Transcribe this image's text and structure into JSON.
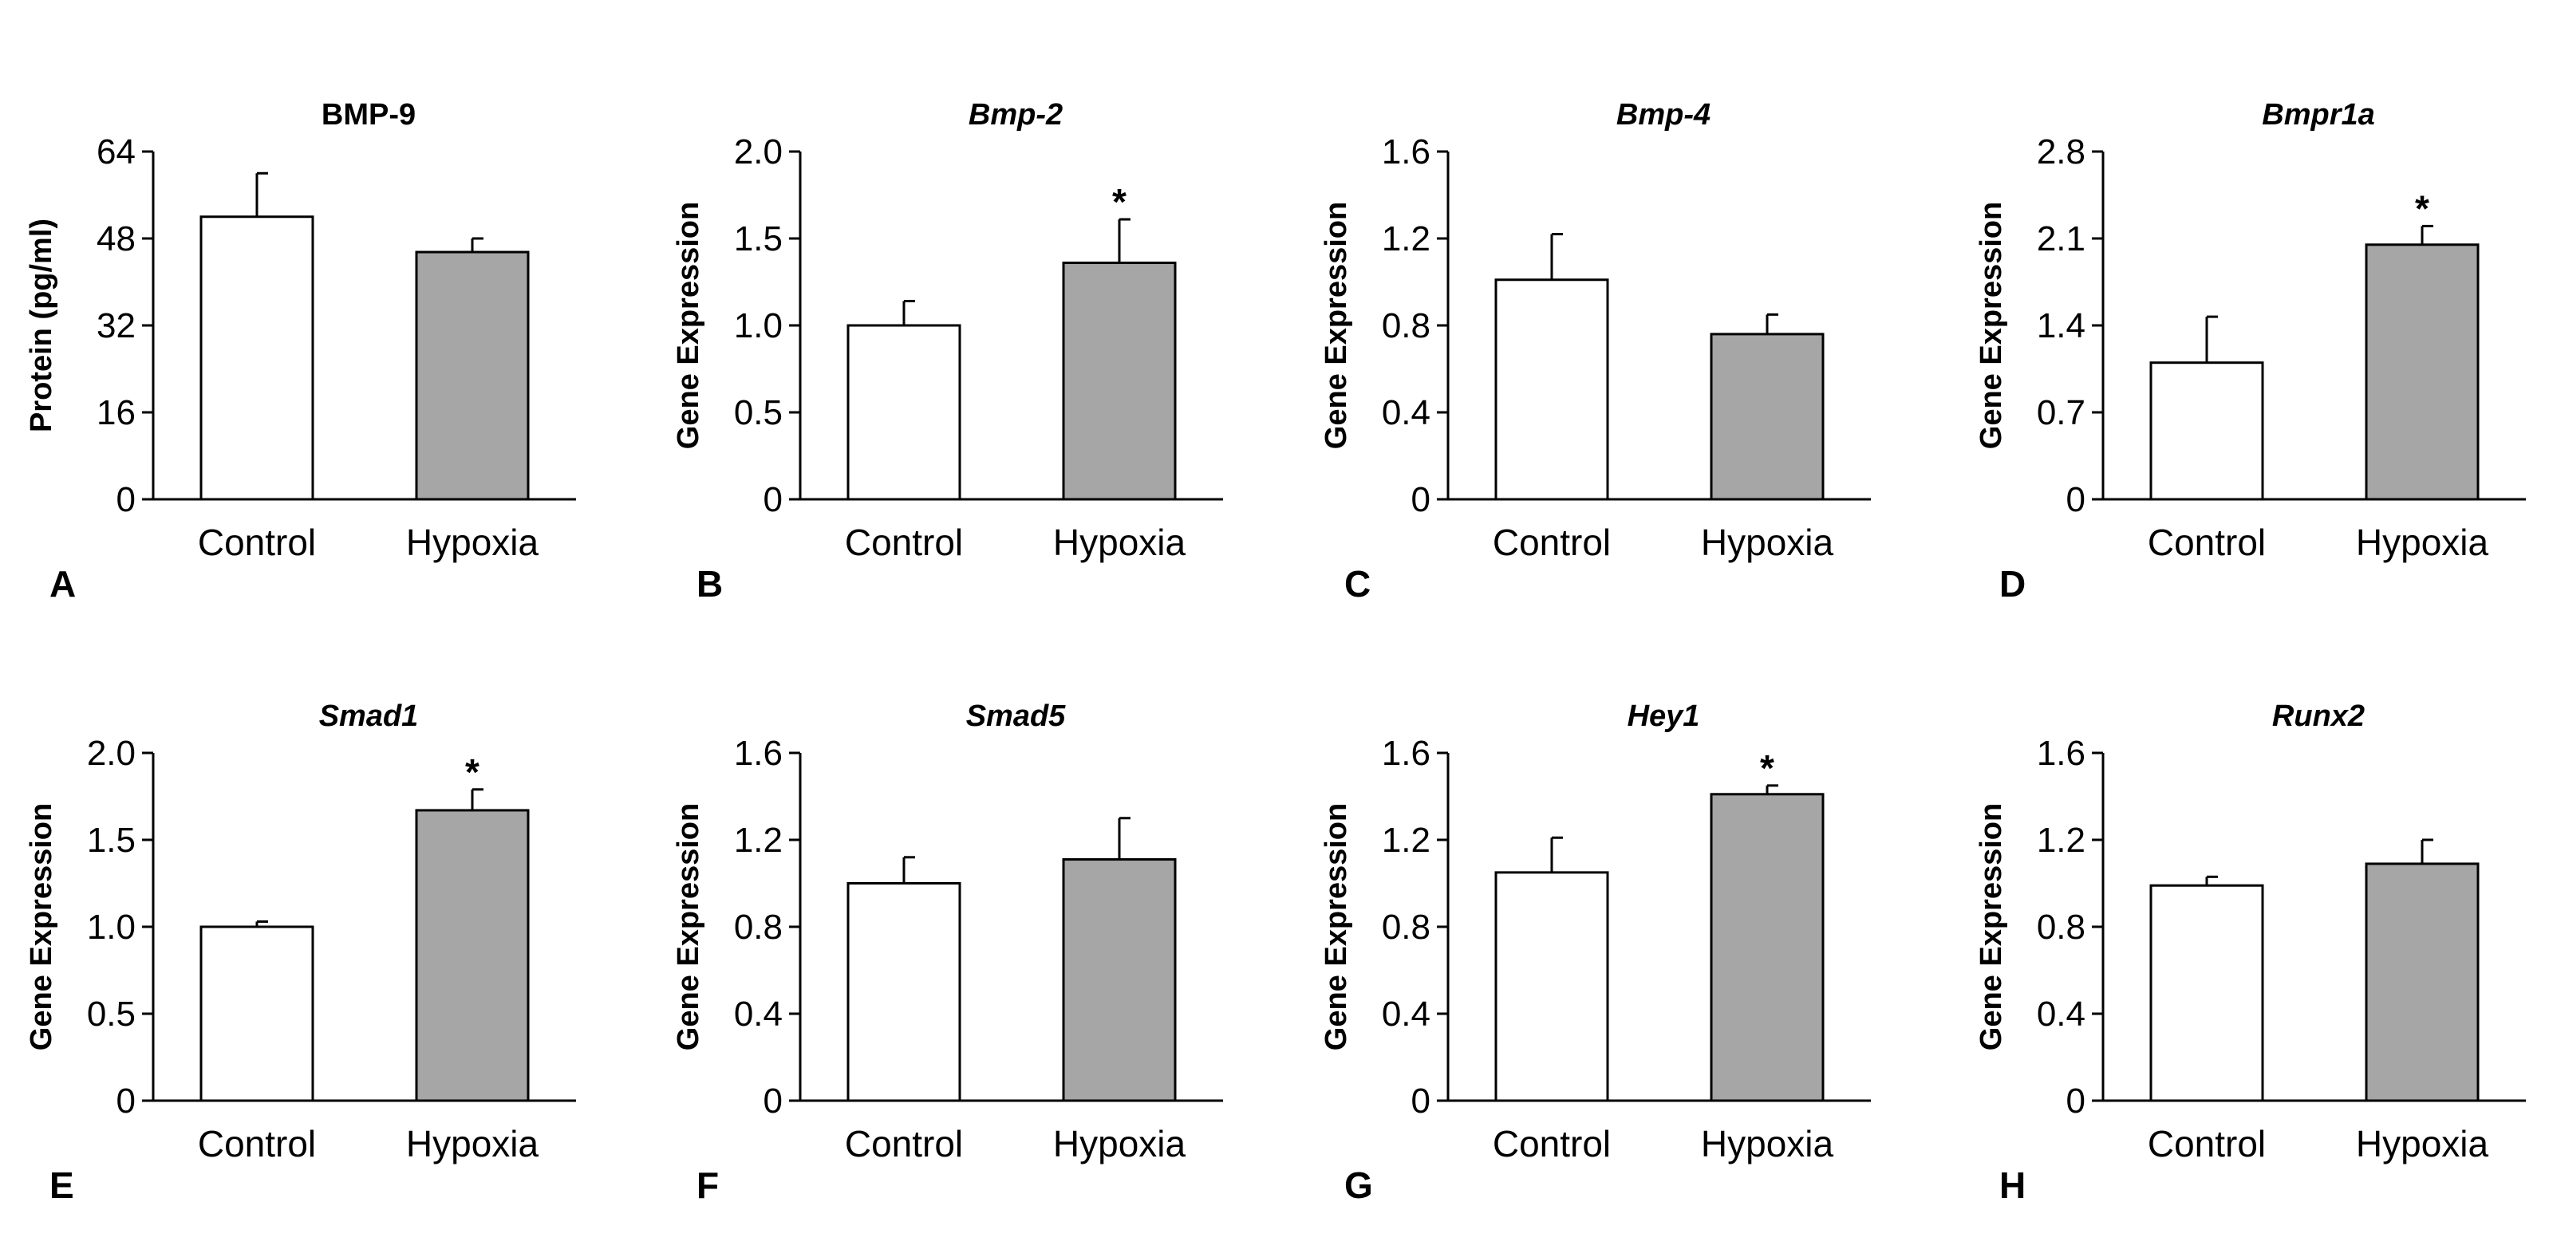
{
  "figure": {
    "background": "#ffffff"
  },
  "chart_data": [
    {
      "panel": "A",
      "type": "bar",
      "title": "BMP-9",
      "title_italic": false,
      "ylabel": "Protein (pg/ml)",
      "xlabel": "",
      "categories": [
        "Control",
        "Hypoxia"
      ],
      "values": [
        52,
        45.5
      ],
      "errors": [
        8,
        2.5
      ],
      "significance": [
        "",
        ""
      ],
      "ylim": [
        0,
        64
      ],
      "yticks": [
        0,
        16,
        32,
        48,
        64
      ],
      "ytick_labels": [
        "0",
        "16",
        "32",
        "48",
        "64"
      ],
      "bar_colors": [
        "#ffffff",
        "#a6a6a6"
      ]
    },
    {
      "panel": "B",
      "type": "bar",
      "title": "Bmp-2",
      "title_italic": true,
      "ylabel": "Gene Expression",
      "xlabel": "",
      "categories": [
        "Control",
        "Hypoxia"
      ],
      "values": [
        1.0,
        1.36
      ],
      "errors": [
        0.14,
        0.25
      ],
      "significance": [
        "",
        "*"
      ],
      "ylim": [
        0,
        2.0
      ],
      "yticks": [
        0,
        0.5,
        1.0,
        1.5,
        2.0
      ],
      "ytick_labels": [
        "0",
        "0.5",
        "1.0",
        "1.5",
        "2.0"
      ],
      "bar_colors": [
        "#ffffff",
        "#a6a6a6"
      ]
    },
    {
      "panel": "C",
      "type": "bar",
      "title": "Bmp-4",
      "title_italic": true,
      "ylabel": "Gene Expression",
      "xlabel": "",
      "categories": [
        "Control",
        "Hypoxia"
      ],
      "values": [
        1.01,
        0.76
      ],
      "errors": [
        0.21,
        0.09
      ],
      "significance": [
        "",
        ""
      ],
      "ylim": [
        0,
        1.6
      ],
      "yticks": [
        0,
        0.4,
        0.8,
        1.2,
        1.6
      ],
      "ytick_labels": [
        "0",
        "0.4",
        "0.8",
        "1.2",
        "1.6"
      ],
      "bar_colors": [
        "#ffffff",
        "#a6a6a6"
      ]
    },
    {
      "panel": "D",
      "type": "bar",
      "title": "Bmpr1a",
      "title_italic": true,
      "ylabel": "Gene Expression",
      "xlabel": "",
      "categories": [
        "Control",
        "Hypoxia"
      ],
      "values": [
        1.1,
        2.05
      ],
      "errors": [
        0.37,
        0.15
      ],
      "significance": [
        "",
        "*"
      ],
      "ylim": [
        0,
        2.8
      ],
      "yticks": [
        0,
        0.7,
        1.4,
        2.1,
        2.8
      ],
      "ytick_labels": [
        "0",
        "0.7",
        "1.4",
        "2.1",
        "2.8"
      ],
      "bar_colors": [
        "#ffffff",
        "#a6a6a6"
      ]
    },
    {
      "panel": "E",
      "type": "bar",
      "title": "Smad1",
      "title_italic": true,
      "ylabel": "Gene Expression",
      "xlabel": "",
      "categories": [
        "Control",
        "Hypoxia"
      ],
      "values": [
        1.0,
        1.67
      ],
      "errors": [
        0.03,
        0.12
      ],
      "significance": [
        "",
        "*"
      ],
      "ylim": [
        0,
        2.0
      ],
      "yticks": [
        0,
        0.5,
        1.0,
        1.5,
        2.0
      ],
      "ytick_labels": [
        "0",
        "0.5",
        "1.0",
        "1.5",
        "2.0"
      ],
      "bar_colors": [
        "#ffffff",
        "#a6a6a6"
      ]
    },
    {
      "panel": "F",
      "type": "bar",
      "title": "Smad5",
      "title_italic": true,
      "ylabel": "Gene Expression",
      "xlabel": "",
      "categories": [
        "Control",
        "Hypoxia"
      ],
      "values": [
        1.0,
        1.11
      ],
      "errors": [
        0.12,
        0.19
      ],
      "significance": [
        "",
        ""
      ],
      "ylim": [
        0,
        1.6
      ],
      "yticks": [
        0,
        0.4,
        0.8,
        1.2,
        1.6
      ],
      "ytick_labels": [
        "0",
        "0.4",
        "0.8",
        "1.2",
        "1.6"
      ],
      "bar_colors": [
        "#ffffff",
        "#a6a6a6"
      ]
    },
    {
      "panel": "G",
      "type": "bar",
      "title": "Hey1",
      "title_italic": true,
      "ylabel": "Gene Expression",
      "xlabel": "",
      "categories": [
        "Control",
        "Hypoxia"
      ],
      "values": [
        1.05,
        1.41
      ],
      "errors": [
        0.16,
        0.04
      ],
      "significance": [
        "",
        "*"
      ],
      "ylim": [
        0,
        1.6
      ],
      "yticks": [
        0,
        0.4,
        0.8,
        1.2,
        1.6
      ],
      "ytick_labels": [
        "0",
        "0.4",
        "0.8",
        "1.2",
        "1.6"
      ],
      "bar_colors": [
        "#ffffff",
        "#a6a6a6"
      ]
    },
    {
      "panel": "H",
      "type": "bar",
      "title": "Runx2",
      "title_italic": true,
      "ylabel": "Gene Expression",
      "xlabel": "",
      "categories": [
        "Control",
        "Hypoxia"
      ],
      "values": [
        0.99,
        1.09
      ],
      "errors": [
        0.04,
        0.11
      ],
      "significance": [
        "",
        ""
      ],
      "ylim": [
        0,
        1.6
      ],
      "yticks": [
        0,
        0.4,
        0.8,
        1.2,
        1.6
      ],
      "ytick_labels": [
        "0",
        "0.4",
        "0.8",
        "1.2",
        "1.6"
      ],
      "bar_colors": [
        "#ffffff",
        "#a6a6a6"
      ]
    }
  ]
}
